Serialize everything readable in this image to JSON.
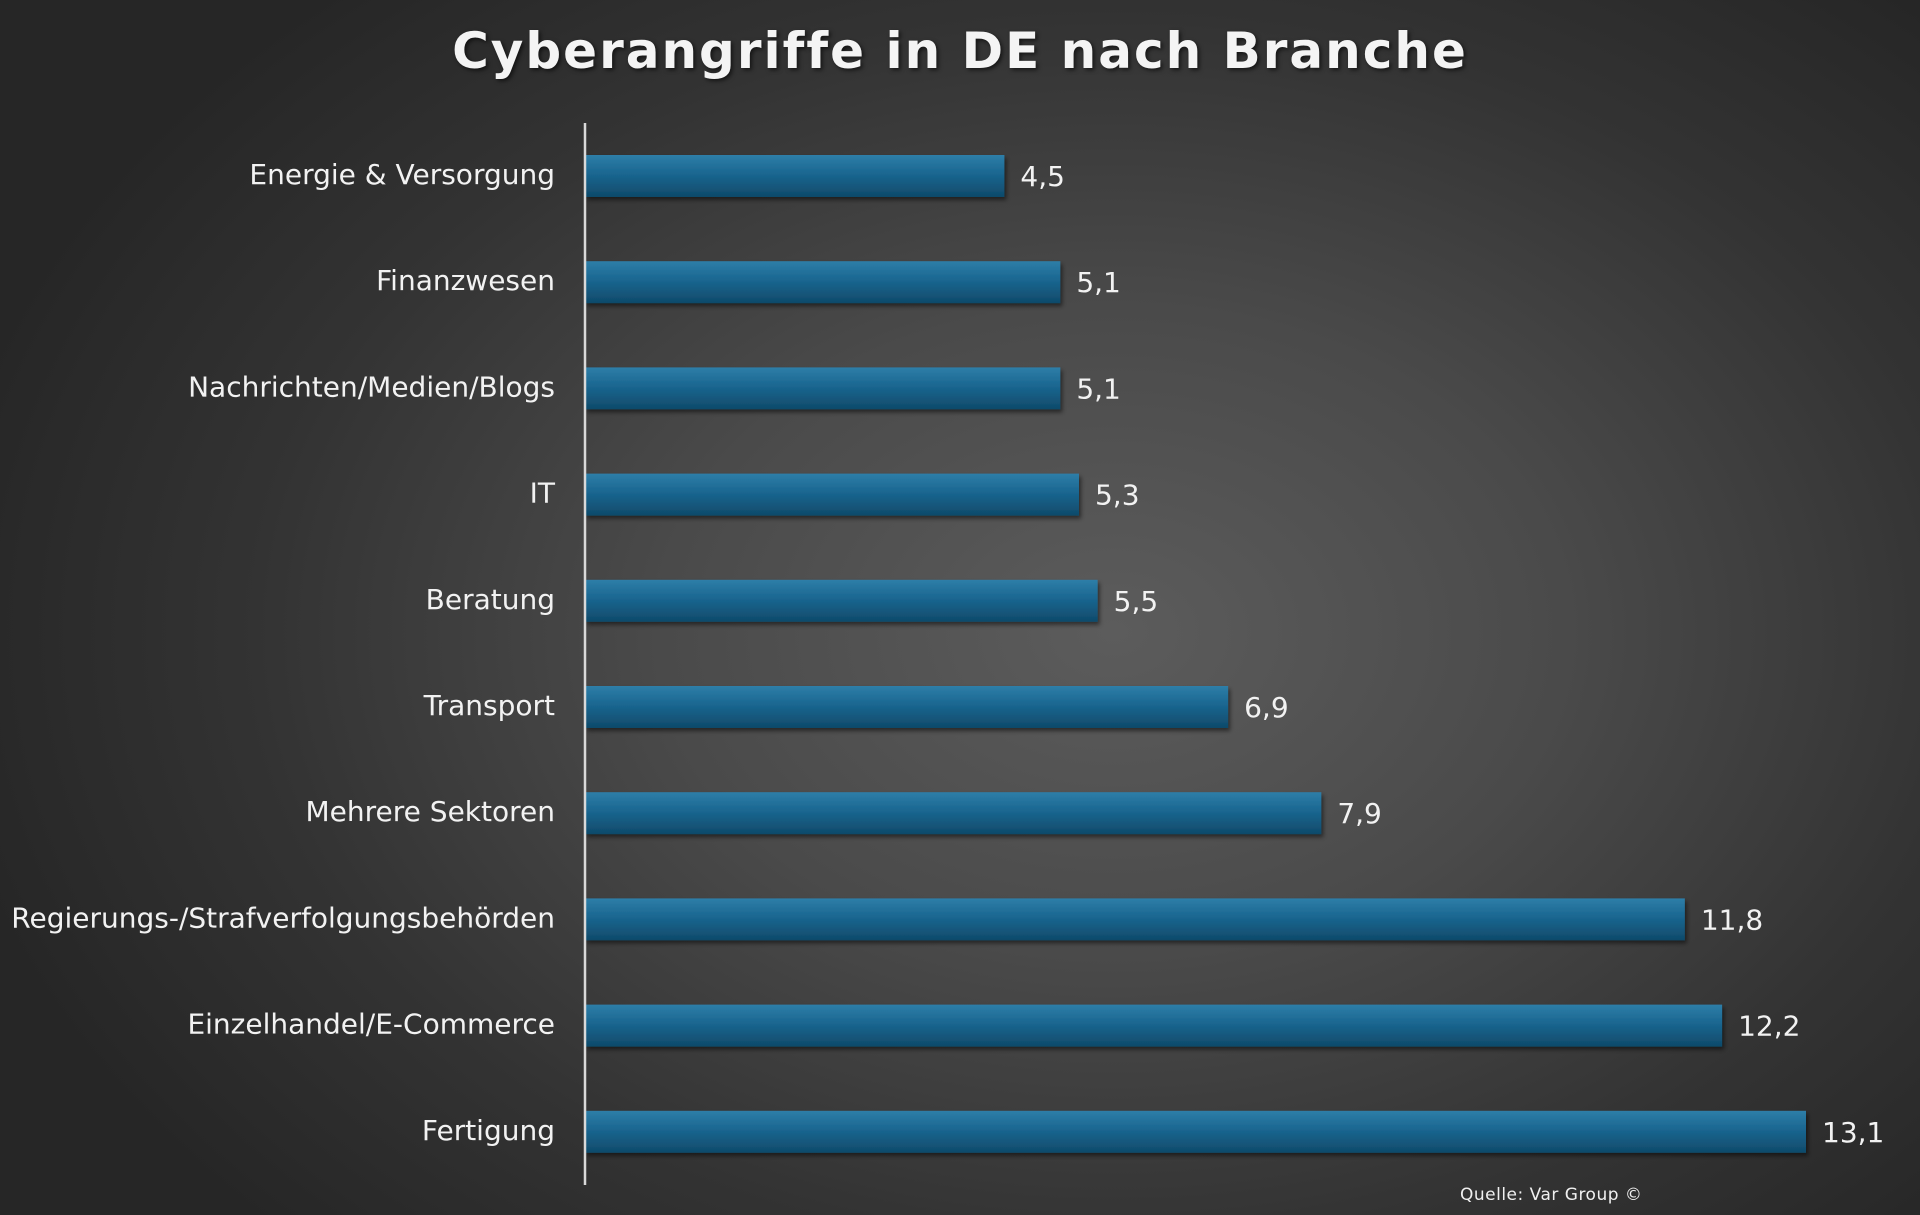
{
  "chart_data": {
    "type": "bar",
    "orientation": "horizontal",
    "title": "Cyberangriffe in DE nach Branche",
    "categories": [
      "Energie & Versorgung",
      "Finanzwesen",
      "Nachrichten/Medien/Blogs",
      "IT",
      "Beratung",
      "Transport",
      "Mehrere Sektoren",
      "Regierungs-/Strafverfolgungsbehörden",
      "Einzelhandel/E-Commerce",
      "Fertigung"
    ],
    "values": [
      4.5,
      5.1,
      5.1,
      5.3,
      5.5,
      6.9,
      7.9,
      11.8,
      12.2,
      13.1
    ],
    "value_labels": [
      "4,5",
      "5,1",
      "5,1",
      "5,3",
      "5,5",
      "6,9",
      "7,9",
      "11,8",
      "12,2",
      "13,1"
    ],
    "xlim": [
      0,
      13.1
    ],
    "grid": false,
    "legend": "none",
    "xlabel": "",
    "ylabel": ""
  },
  "source": "Quelle: Var Group ©",
  "colors": {
    "bar": "#1a6690",
    "bar_highlight": "#2e7ea8",
    "bar_shadow": "#0f4a6a",
    "text": "#f2f2f2",
    "axis": "#d9d9d9"
  }
}
